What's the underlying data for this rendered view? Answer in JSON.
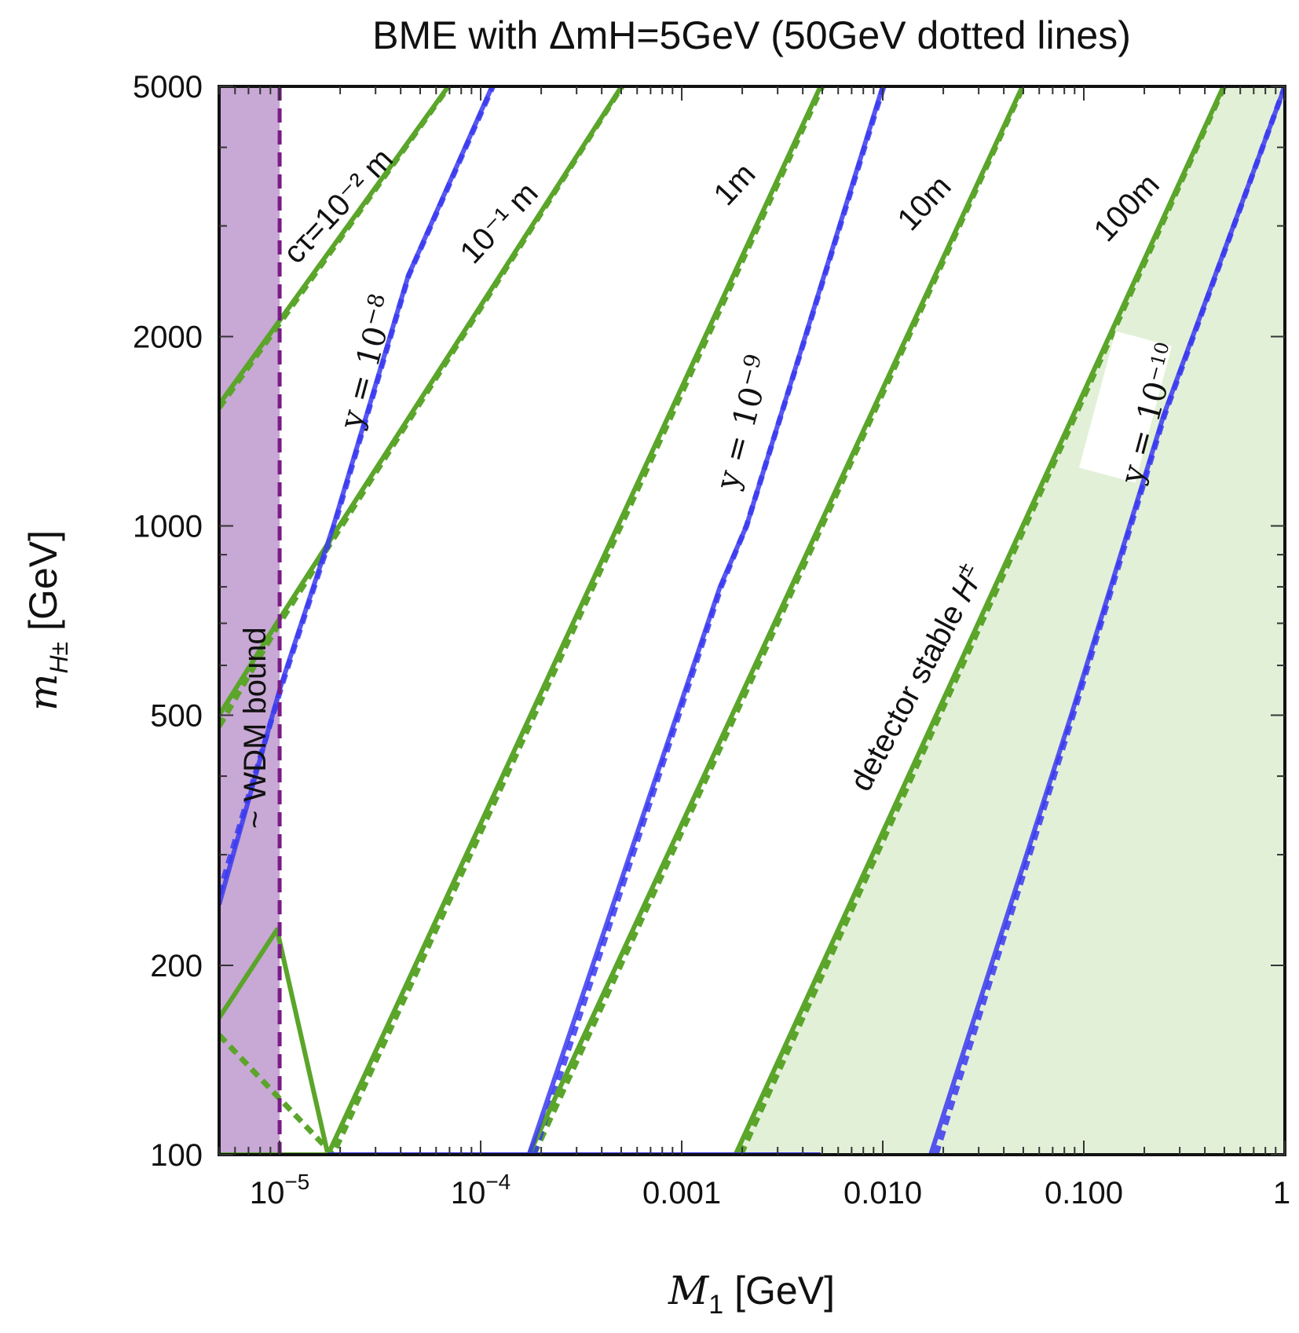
{
  "chart_data": {
    "type": "line",
    "title": "BME with ΔmH=5GeV (50GeV dotted lines)",
    "xlabel_italic": "M",
    "xlabel_sub": "1",
    "xlabel_unit": "[GeV]",
    "ylabel_italic": "m",
    "ylabel_sub": "H±",
    "ylabel_unit": "[GeV]",
    "x_scale": "log",
    "y_scale": "log",
    "xlim": [
      5e-06,
      1
    ],
    "ylim": [
      100,
      5000
    ],
    "x_ticks": [
      {
        "value": 1e-05,
        "base": "10",
        "exp": "−5"
      },
      {
        "value": 0.0001,
        "base": "10",
        "exp": "−4"
      },
      {
        "value": 0.001,
        "label": "0.001"
      },
      {
        "value": 0.01,
        "label": "0.010"
      },
      {
        "value": 0.1,
        "label": "0.100"
      },
      {
        "value": 1,
        "label": "1"
      }
    ],
    "y_ticks": [
      {
        "value": 100,
        "label": "100"
      },
      {
        "value": 200,
        "label": "200"
      },
      {
        "value": 500,
        "label": "500"
      },
      {
        "value": 1000,
        "label": "1000"
      },
      {
        "value": 2000,
        "label": "2000"
      },
      {
        "value": 5000,
        "label": "5000"
      }
    ],
    "colors": {
      "decay_length": "#5aa52a",
      "coupling": "#3a3af0",
      "wdm_region": "#c8a8d4",
      "wdm_boundary": "#7a1a86",
      "stable_region": "#e2f0d8"
    },
    "wdm_region": {
      "x_max": 1e-05,
      "label": "~ WDM  bound"
    },
    "stable_region": {
      "label_text": "detector stable ",
      "label_italic": "H",
      "label_sup": "±"
    },
    "decay_length_series": [
      {
        "label": "cτ=10⁻² m",
        "solid": [
          [
            5e-06,
            1560
          ],
          [
            6.9e-05,
            5000
          ]
        ],
        "dotted": [
          [
            5e-06,
            1540
          ],
          [
            6.95e-05,
            5000
          ]
        ]
      },
      {
        "label": "10⁻¹ m",
        "solid": [
          [
            5e-06,
            500
          ],
          [
            9.67e-06,
            700
          ],
          [
            0.000502,
            5000
          ]
        ],
        "dotted": [
          [
            5e-06,
            480
          ],
          [
            9.7e-06,
            690
          ],
          [
            0.000505,
            5000
          ]
        ]
      },
      {
        "label": "1m",
        "solid": [
          [
            5e-06,
            165
          ],
          [
            9.7e-06,
            228
          ],
          [
            1.74e-05,
            100
          ],
          [
            1.74e-05,
            100
          ],
          [
            0.0049,
            5000
          ]
        ],
        "dotted": [
          [
            5e-06,
            155
          ],
          [
            1.84e-05,
            100
          ],
          [
            1.84e-05,
            100
          ],
          [
            0.005,
            5000
          ]
        ]
      },
      {
        "label": "10m",
        "solid": [
          [
            0.000174,
            100
          ],
          [
            0.0495,
            5000
          ]
        ],
        "dotted": [
          [
            0.000184,
            100
          ],
          [
            0.05,
            5000
          ]
        ]
      },
      {
        "label": "100m",
        "solid": [
          [
            0.00185,
            100
          ],
          [
            0.495,
            5000
          ]
        ],
        "dotted": [
          [
            0.00197,
            100
          ],
          [
            0.5,
            5000
          ]
        ]
      }
    ],
    "baseline_segments": [
      {
        "color": "decay_length",
        "points": [
          [
            5e-06,
            100
          ],
          [
            1.74e-05,
            100
          ]
        ]
      },
      {
        "color": "coupling",
        "points": [
          [
            1.74e-05,
            100
          ],
          [
            0.0049,
            100
          ]
        ]
      }
    ],
    "coupling_series": [
      {
        "label_base": "y = 10",
        "label_exp": "−8",
        "solid": [
          [
            5e-06,
            250
          ],
          [
            1.01e-05,
            555
          ],
          [
            1.85e-05,
            1000
          ],
          [
            4.36e-05,
            2500
          ],
          [
            0.000114,
            5000
          ]
        ],
        "dotted": [
          [
            5e-06,
            260
          ],
          [
            1.03e-05,
            560
          ],
          [
            1.87e-05,
            1000
          ],
          [
            4.38e-05,
            2500
          ],
          [
            0.000115,
            5000
          ]
        ]
      },
      {
        "label_base": "y = 10",
        "label_exp": "−9",
        "solid": [
          [
            0.000174,
            100
          ],
          [
            0.00155,
            800
          ],
          [
            0.0021,
            1000
          ],
          [
            0.01,
            5000
          ]
        ],
        "dotted": [
          [
            0.000184,
            100
          ],
          [
            0.00157,
            800
          ],
          [
            0.0021,
            1000
          ],
          [
            0.0101,
            5000
          ]
        ]
      },
      {
        "label_base": "y = 10",
        "label_exp": "−10",
        "solid": [
          [
            0.0173,
            100
          ],
          [
            0.0866,
            500
          ],
          [
            0.2495,
            1500
          ],
          [
            1,
            5000
          ]
        ],
        "dotted": [
          [
            0.0184,
            100
          ],
          [
            0.0885,
            500
          ],
          [
            0.252,
            1500
          ],
          [
            1,
            5000
          ]
        ]
      }
    ]
  }
}
